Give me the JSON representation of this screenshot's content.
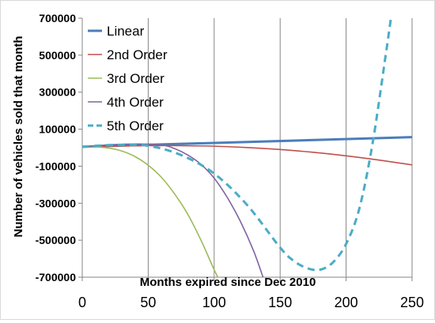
{
  "chart_data": {
    "type": "line",
    "title": "",
    "xlabel": "Months expired since Dec 2010",
    "ylabel": "Number of vehicles sold that month",
    "xlim": [
      0,
      250
    ],
    "ylim": [
      -700000,
      700000
    ],
    "x_ticks": [
      "0",
      "50",
      "100",
      "150",
      "200",
      "250"
    ],
    "y_ticks": [
      "700000",
      "500000",
      "300000",
      "100000",
      "-100000",
      "-300000",
      "-500000",
      "-700000"
    ],
    "grid": "vertical",
    "legend_position": "top-left",
    "series": [
      {
        "name": "Linear",
        "color": "#4a7ebb",
        "dash": "solid",
        "x": [
          0,
          250
        ],
        "y": [
          5000,
          57000
        ]
      },
      {
        "name": "2nd Order",
        "color": "#c0504d",
        "dash": "solid",
        "x": [
          0,
          25,
          50,
          75,
          100,
          125,
          150,
          175,
          200,
          225,
          250
        ],
        "y": [
          5000,
          9000,
          11000,
          11000,
          8000,
          1000,
          -10000,
          -25000,
          -44000,
          -67000,
          -93000
        ]
      },
      {
        "name": "3rd Order",
        "color": "#9bbb59",
        "dash": "solid",
        "x": [
          0,
          10,
          20,
          30,
          40,
          50,
          60,
          70,
          80,
          90,
          100,
          105
        ],
        "y": [
          5000,
          4000,
          -2000,
          -18000,
          -48000,
          -95000,
          -160000,
          -250000,
          -360000,
          -500000,
          -660000,
          -730000
        ]
      },
      {
        "name": "4th Order",
        "color": "#8064a2",
        "dash": "solid",
        "x": [
          0,
          20,
          40,
          60,
          70,
          80,
          90,
          100,
          110,
          120,
          130,
          138
        ],
        "y": [
          5000,
          15000,
          20000,
          15000,
          -5000,
          -40000,
          -90000,
          -165000,
          -270000,
          -400000,
          -560000,
          -720000
        ]
      },
      {
        "name": "5th Order",
        "color": "#4bacc6",
        "dash": "dashed",
        "x": [
          0,
          25,
          50,
          75,
          100,
          125,
          150,
          160,
          170,
          180,
          190,
          200,
          210,
          220,
          230,
          234
        ],
        "y": [
          5000,
          15000,
          10000,
          -40000,
          -140000,
          -310000,
          -540000,
          -610000,
          -650000,
          -660000,
          -620000,
          -520000,
          -330000,
          20000,
          500000,
          700000
        ]
      }
    ]
  }
}
